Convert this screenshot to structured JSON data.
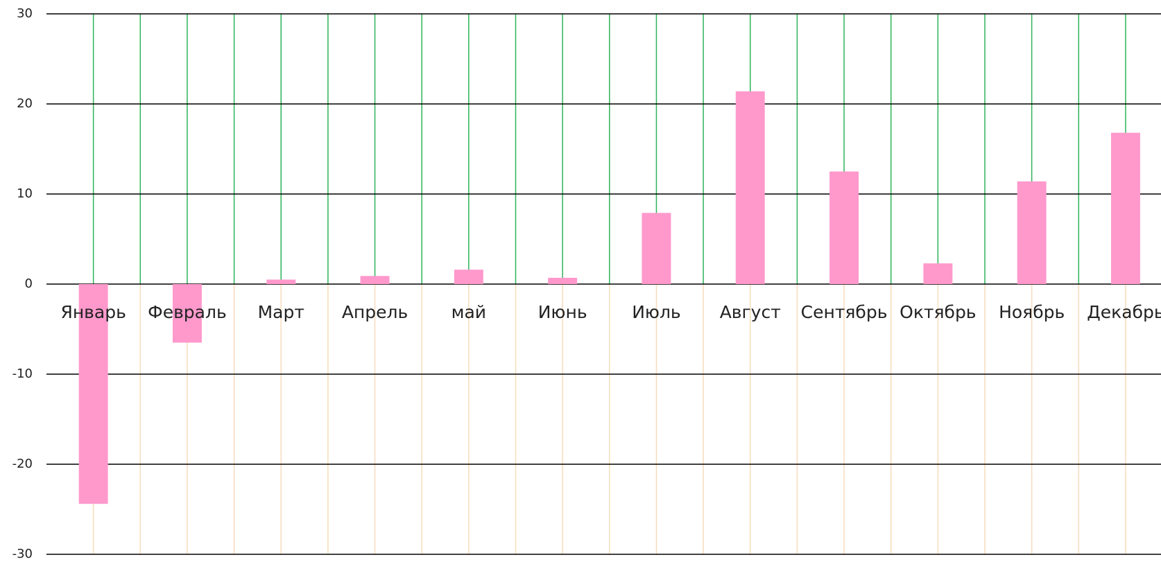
{
  "chart_data": {
    "type": "bar",
    "categories": [
      "Январь",
      "Февраль",
      "Март",
      "Апрель",
      "май",
      "Июнь",
      "Июль",
      "Август",
      "Сентябрь",
      "Октябрь",
      "Ноябрь",
      "Декабрь"
    ],
    "values": [
      -24.4,
      -6.5,
      0.5,
      0.9,
      1.6,
      0.7,
      7.9,
      21.4,
      12.5,
      2.3,
      11.4,
      16.8
    ],
    "color": "#ff99cc",
    "ylim": [
      -30,
      30
    ],
    "yticks": [
      -30,
      -20,
      -10,
      0,
      10,
      20,
      30
    ],
    "grid": true
  }
}
